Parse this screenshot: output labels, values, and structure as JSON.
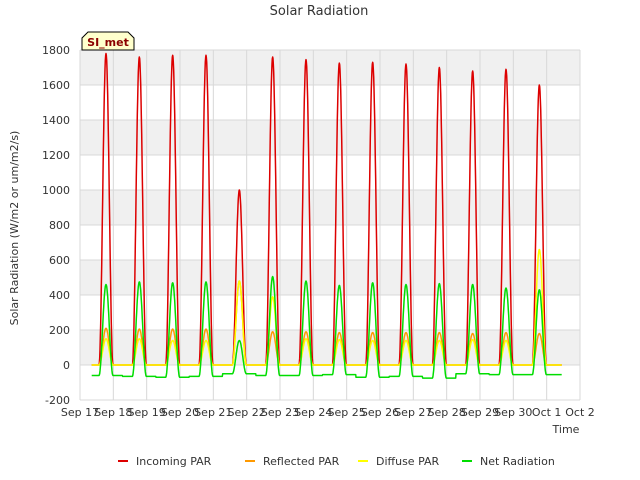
{
  "chart_data": {
    "type": "line",
    "title": "Solar Radiation",
    "xlabel": "Time",
    "ylabel": "Solar Radiation (W/m2 or um/m2/s)",
    "site_badge": "SI_met",
    "ylim": [
      -200,
      1800
    ],
    "xlim_days": [
      17,
      32
    ],
    "y_ticks": [
      -200,
      0,
      200,
      400,
      600,
      800,
      1000,
      1200,
      1400,
      1600,
      1800
    ],
    "y_tick_labels": [
      "-200",
      "0",
      "200",
      "400",
      "600",
      "800",
      "1000",
      "1200",
      "1400",
      "1600",
      "1800"
    ],
    "x_ticks": [
      17,
      18,
      19,
      20,
      21,
      22,
      23,
      24,
      25,
      26,
      27,
      28,
      29,
      30,
      31,
      32
    ],
    "x_tick_labels": [
      "Sep 17",
      "Sep 18",
      "Sep 19",
      "Sep 20",
      "Sep 21",
      "Sep 22",
      "Sep 23",
      "Sep 24",
      "Sep 25",
      "Sep 26",
      "Sep 27",
      "Sep 28",
      "Sep 29",
      "Sep 30",
      "Oct 1",
      "Oct 2"
    ],
    "grid": true,
    "legend_position": "bottom",
    "colors": {
      "incoming": "#dd0000",
      "reflected": "#ff9900",
      "diffuse": "#ffff00",
      "net": "#00dd00",
      "band": "#f0f0f0",
      "badge_bg": "#ffffcc",
      "badge_border": "#000000"
    },
    "series": [
      {
        "name": "Incoming PAR",
        "key": "incoming",
        "daily_peaks": [
          1780,
          1760,
          1770,
          1770,
          1000,
          1760,
          1745,
          1725,
          1730,
          1720,
          1700,
          1680,
          1690,
          1600
        ]
      },
      {
        "name": "Reflected PAR",
        "key": "reflected",
        "daily_peaks": [
          210,
          205,
          205,
          205,
          480,
          190,
          190,
          185,
          185,
          185,
          185,
          180,
          185,
          180
        ]
      },
      {
        "name": "Diffuse PAR",
        "key": "diffuse",
        "daily_peaks": [
          150,
          150,
          140,
          140,
          480,
          390,
          150,
          145,
          140,
          140,
          140,
          145,
          140,
          660
        ]
      },
      {
        "name": "Net Radiation",
        "key": "net",
        "daily_peaks": [
          460,
          475,
          470,
          475,
          140,
          505,
          480,
          455,
          470,
          460,
          465,
          460,
          440,
          430
        ],
        "night_values": [
          -60,
          -65,
          -70,
          -65,
          -50,
          -60,
          -60,
          -55,
          -70,
          -65,
          -75,
          -50,
          -55,
          -55,
          -55
        ]
      }
    ],
    "day_centers": [
      17.78,
      18.78,
      19.78,
      20.78,
      21.78,
      22.78,
      23.78,
      24.78,
      25.78,
      26.78,
      27.78,
      28.78,
      29.78,
      30.78
    ],
    "data_span": [
      17.35,
      31.45
    ]
  }
}
